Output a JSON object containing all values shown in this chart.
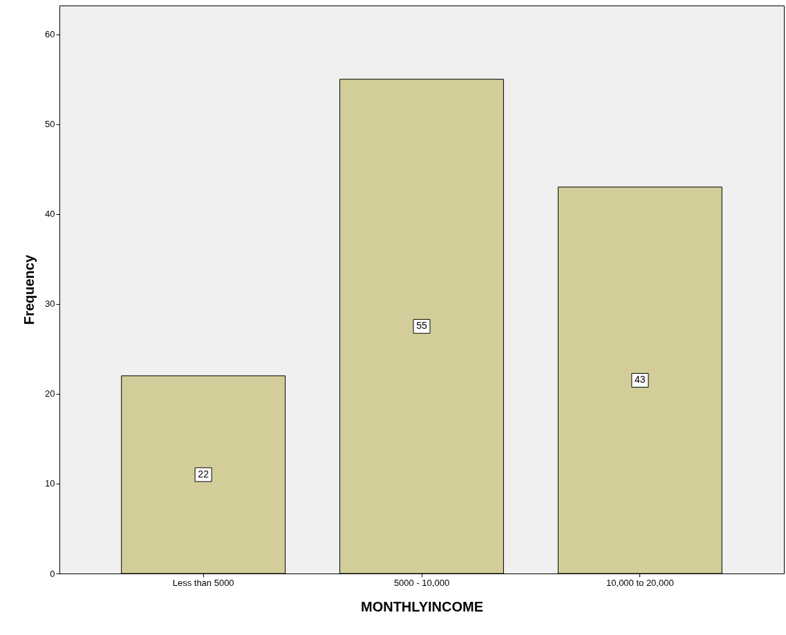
{
  "chart_data": {
    "type": "bar",
    "xlabel": "MONTHLYINCOME",
    "ylabel": "Frequency",
    "categories": [
      "Less than 5000",
      "5000 - 10,000",
      "10,000 to 20,000"
    ],
    "values": [
      22,
      55,
      43
    ],
    "color": "#d3ce99",
    "ylim": [
      0,
      63.2
    ],
    "yticks": [
      0,
      10,
      20,
      30,
      40,
      50,
      60
    ],
    "grid": false,
    "data_labels": true
  }
}
